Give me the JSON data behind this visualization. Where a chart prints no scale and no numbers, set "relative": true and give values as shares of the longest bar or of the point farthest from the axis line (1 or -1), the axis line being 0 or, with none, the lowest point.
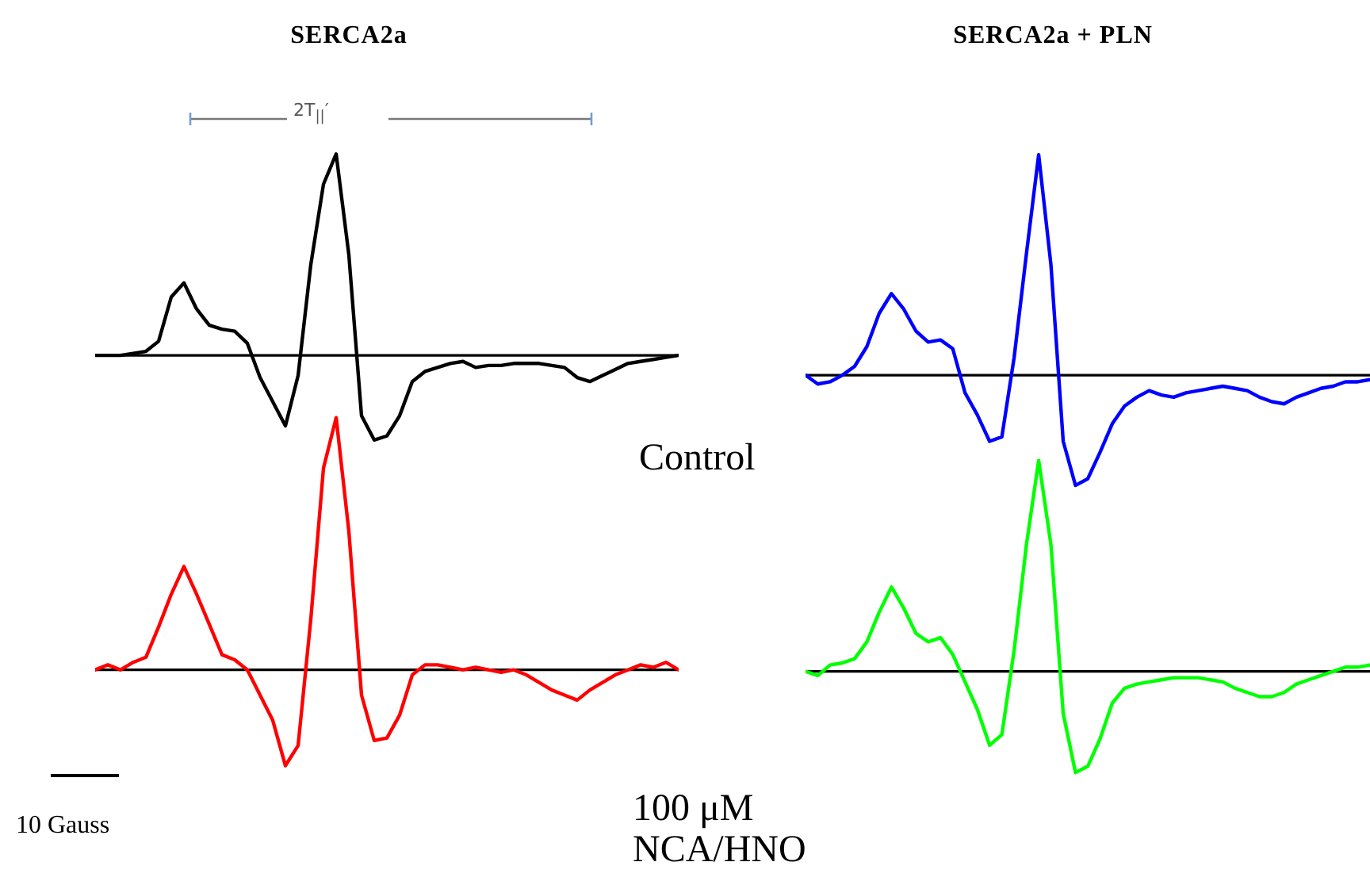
{
  "chart_data": [
    {
      "type": "line",
      "relative": true,
      "title": "SERCA2a",
      "annotations": [
        "2T$_{||}$′",
        "Control"
      ],
      "categories": [
        null,
        null,
        null,
        null,
        null,
        null,
        null,
        null,
        null,
        null,
        null,
        null,
        null,
        null,
        null,
        null,
        null,
        null,
        null,
        null,
        null,
        null,
        null,
        null,
        null,
        null,
        null,
        null,
        null,
        null,
        null,
        null,
        null,
        null,
        null,
        null,
        null,
        null,
        null,
        null,
        null,
        null,
        null,
        null,
        null,
        null,
        null
      ],
      "series": [
        {
          "color": "#000000",
          "values": [
            0,
            0,
            0,
            0.01,
            0.02,
            0.07,
            0.29,
            0.36,
            0.23,
            0.15,
            0.13,
            0.12,
            0.06,
            -0.11,
            -0.23,
            -0.35,
            -0.1,
            0.45,
            0.85,
            1,
            0.5,
            -0.3,
            -0.42,
            -0.4,
            -0.3,
            -0.13,
            -0.08,
            -0.06,
            -0.04,
            -0.03,
            -0.06,
            -0.05,
            -0.05,
            -0.04,
            -0.04,
            -0.04,
            -0.05,
            -0.06,
            -0.11,
            -0.13,
            -0.1,
            -0.07,
            -0.04,
            -0.03,
            -0.02,
            -0.01,
            0
          ]
        }
      ]
    },
    {
      "type": "line",
      "relative": true,
      "annotations": [
        "10 Gauss",
        "100 μM NCA/HNO"
      ],
      "categories": [
        null,
        null,
        null,
        null,
        null,
        null,
        null,
        null,
        null,
        null,
        null,
        null,
        null,
        null,
        null,
        null,
        null,
        null,
        null,
        null,
        null,
        null,
        null,
        null,
        null,
        null,
        null,
        null,
        null,
        null,
        null,
        null,
        null,
        null,
        null,
        null,
        null,
        null,
        null,
        null,
        null,
        null,
        null,
        null,
        null,
        null,
        null
      ],
      "series": [
        {
          "color": "#ff0000",
          "values": [
            0,
            0.02,
            0,
            0.03,
            0.05,
            0.17,
            0.3,
            0.41,
            0.3,
            0.18,
            0.06,
            0.04,
            0,
            -0.1,
            -0.2,
            -0.38,
            -0.3,
            0.2,
            0.8,
            1,
            0.55,
            -0.1,
            -0.28,
            -0.27,
            -0.18,
            -0.02,
            0.02,
            0.02,
            0.01,
            0,
            0.01,
            0,
            -0.01,
            0,
            -0.02,
            -0.05,
            -0.08,
            -0.1,
            -0.12,
            -0.08,
            -0.05,
            -0.02,
            0,
            0.02,
            0.01,
            0.03,
            0
          ]
        }
      ]
    },
    {
      "type": "line",
      "relative": true,
      "title": "SERCA2a + PLN",
      "categories": [
        null,
        null,
        null,
        null,
        null,
        null,
        null,
        null,
        null,
        null,
        null,
        null,
        null,
        null,
        null,
        null,
        null,
        null,
        null,
        null,
        null,
        null,
        null,
        null,
        null,
        null,
        null,
        null,
        null,
        null,
        null,
        null,
        null,
        null,
        null,
        null,
        null,
        null,
        null,
        null,
        null,
        null,
        null,
        null,
        null,
        null,
        null
      ],
      "series": [
        {
          "color": "#0000ff",
          "values": [
            0,
            -0.04,
            -0.03,
            0,
            0.04,
            0.13,
            0.28,
            0.37,
            0.3,
            0.2,
            0.15,
            0.16,
            0.12,
            -0.08,
            -0.18,
            -0.3,
            -0.28,
            0.08,
            0.55,
            1,
            0.5,
            -0.3,
            -0.5,
            -0.47,
            -0.35,
            -0.22,
            -0.14,
            -0.1,
            -0.07,
            -0.09,
            -0.1,
            -0.08,
            -0.07,
            -0.06,
            -0.05,
            -0.06,
            -0.07,
            -0.1,
            -0.12,
            -0.13,
            -0.1,
            -0.08,
            -0.06,
            -0.05,
            -0.03,
            -0.03,
            -0.02
          ]
        }
      ]
    },
    {
      "type": "line",
      "relative": true,
      "categories": [
        null,
        null,
        null,
        null,
        null,
        null,
        null,
        null,
        null,
        null,
        null,
        null,
        null,
        null,
        null,
        null,
        null,
        null,
        null,
        null,
        null,
        null,
        null,
        null,
        null,
        null,
        null,
        null,
        null,
        null,
        null,
        null,
        null,
        null,
        null,
        null,
        null,
        null,
        null,
        null,
        null,
        null,
        null,
        null,
        null,
        null,
        null
      ],
      "series": [
        {
          "color": "#00ff00",
          "values": [
            0,
            -0.02,
            0.03,
            0.04,
            0.06,
            0.14,
            0.28,
            0.4,
            0.3,
            0.18,
            0.14,
            0.16,
            0.08,
            -0.05,
            -0.18,
            -0.35,
            -0.3,
            0.1,
            0.6,
            1,
            0.6,
            -0.2,
            -0.48,
            -0.45,
            -0.32,
            -0.15,
            -0.08,
            -0.06,
            -0.05,
            -0.04,
            -0.03,
            -0.03,
            -0.03,
            -0.04,
            -0.05,
            -0.08,
            -0.1,
            -0.12,
            -0.12,
            -0.1,
            -0.06,
            -0.04,
            -0.02,
            0,
            0.02,
            0.02,
            0.03
          ]
        }
      ]
    }
  ]
}
